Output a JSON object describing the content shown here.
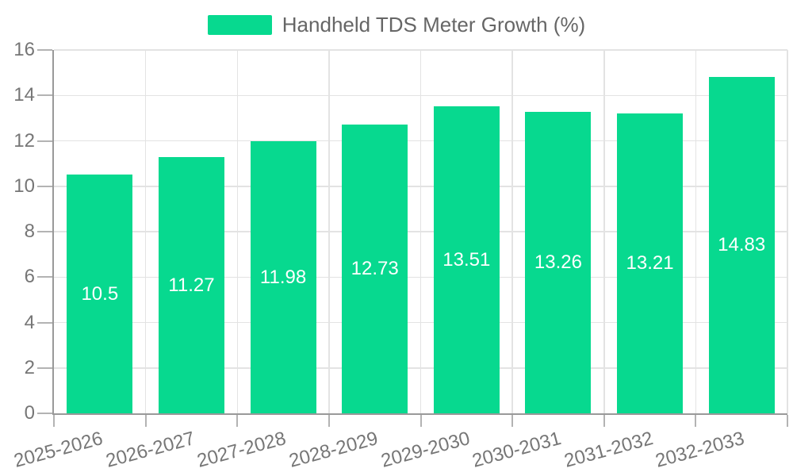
{
  "legend": {
    "label": "Handheld TDS Meter Growth (%)"
  },
  "chart_data": {
    "type": "bar",
    "title": "Handheld TDS Meter Growth (%)",
    "categories": [
      "2025-2026",
      "2026-2027",
      "2027-2028",
      "2028-2029",
      "2029-2030",
      "2030-2031",
      "2031-2032",
      "2032-2033"
    ],
    "values": [
      10.5,
      11.27,
      11.98,
      12.73,
      13.51,
      13.26,
      13.21,
      14.83
    ],
    "value_labels": [
      "10.5",
      "11.27",
      "11.98",
      "12.73",
      "13.51",
      "13.26",
      "13.21",
      "14.83"
    ],
    "xlabel": "",
    "ylabel": "",
    "ylim": [
      0,
      16
    ],
    "yticks": [
      0,
      2,
      4,
      6,
      8,
      10,
      12,
      14,
      16
    ],
    "grid": true,
    "legend_position": "top-center",
    "colors": {
      "bar": "#07d98f",
      "grid": "#e3e3e3",
      "axis": "#999999",
      "tick": "#b3b3b3",
      "axis_label": "#767676",
      "legend_text": "#666666",
      "value_label": "#ffffff",
      "background": "#ffffff"
    }
  }
}
